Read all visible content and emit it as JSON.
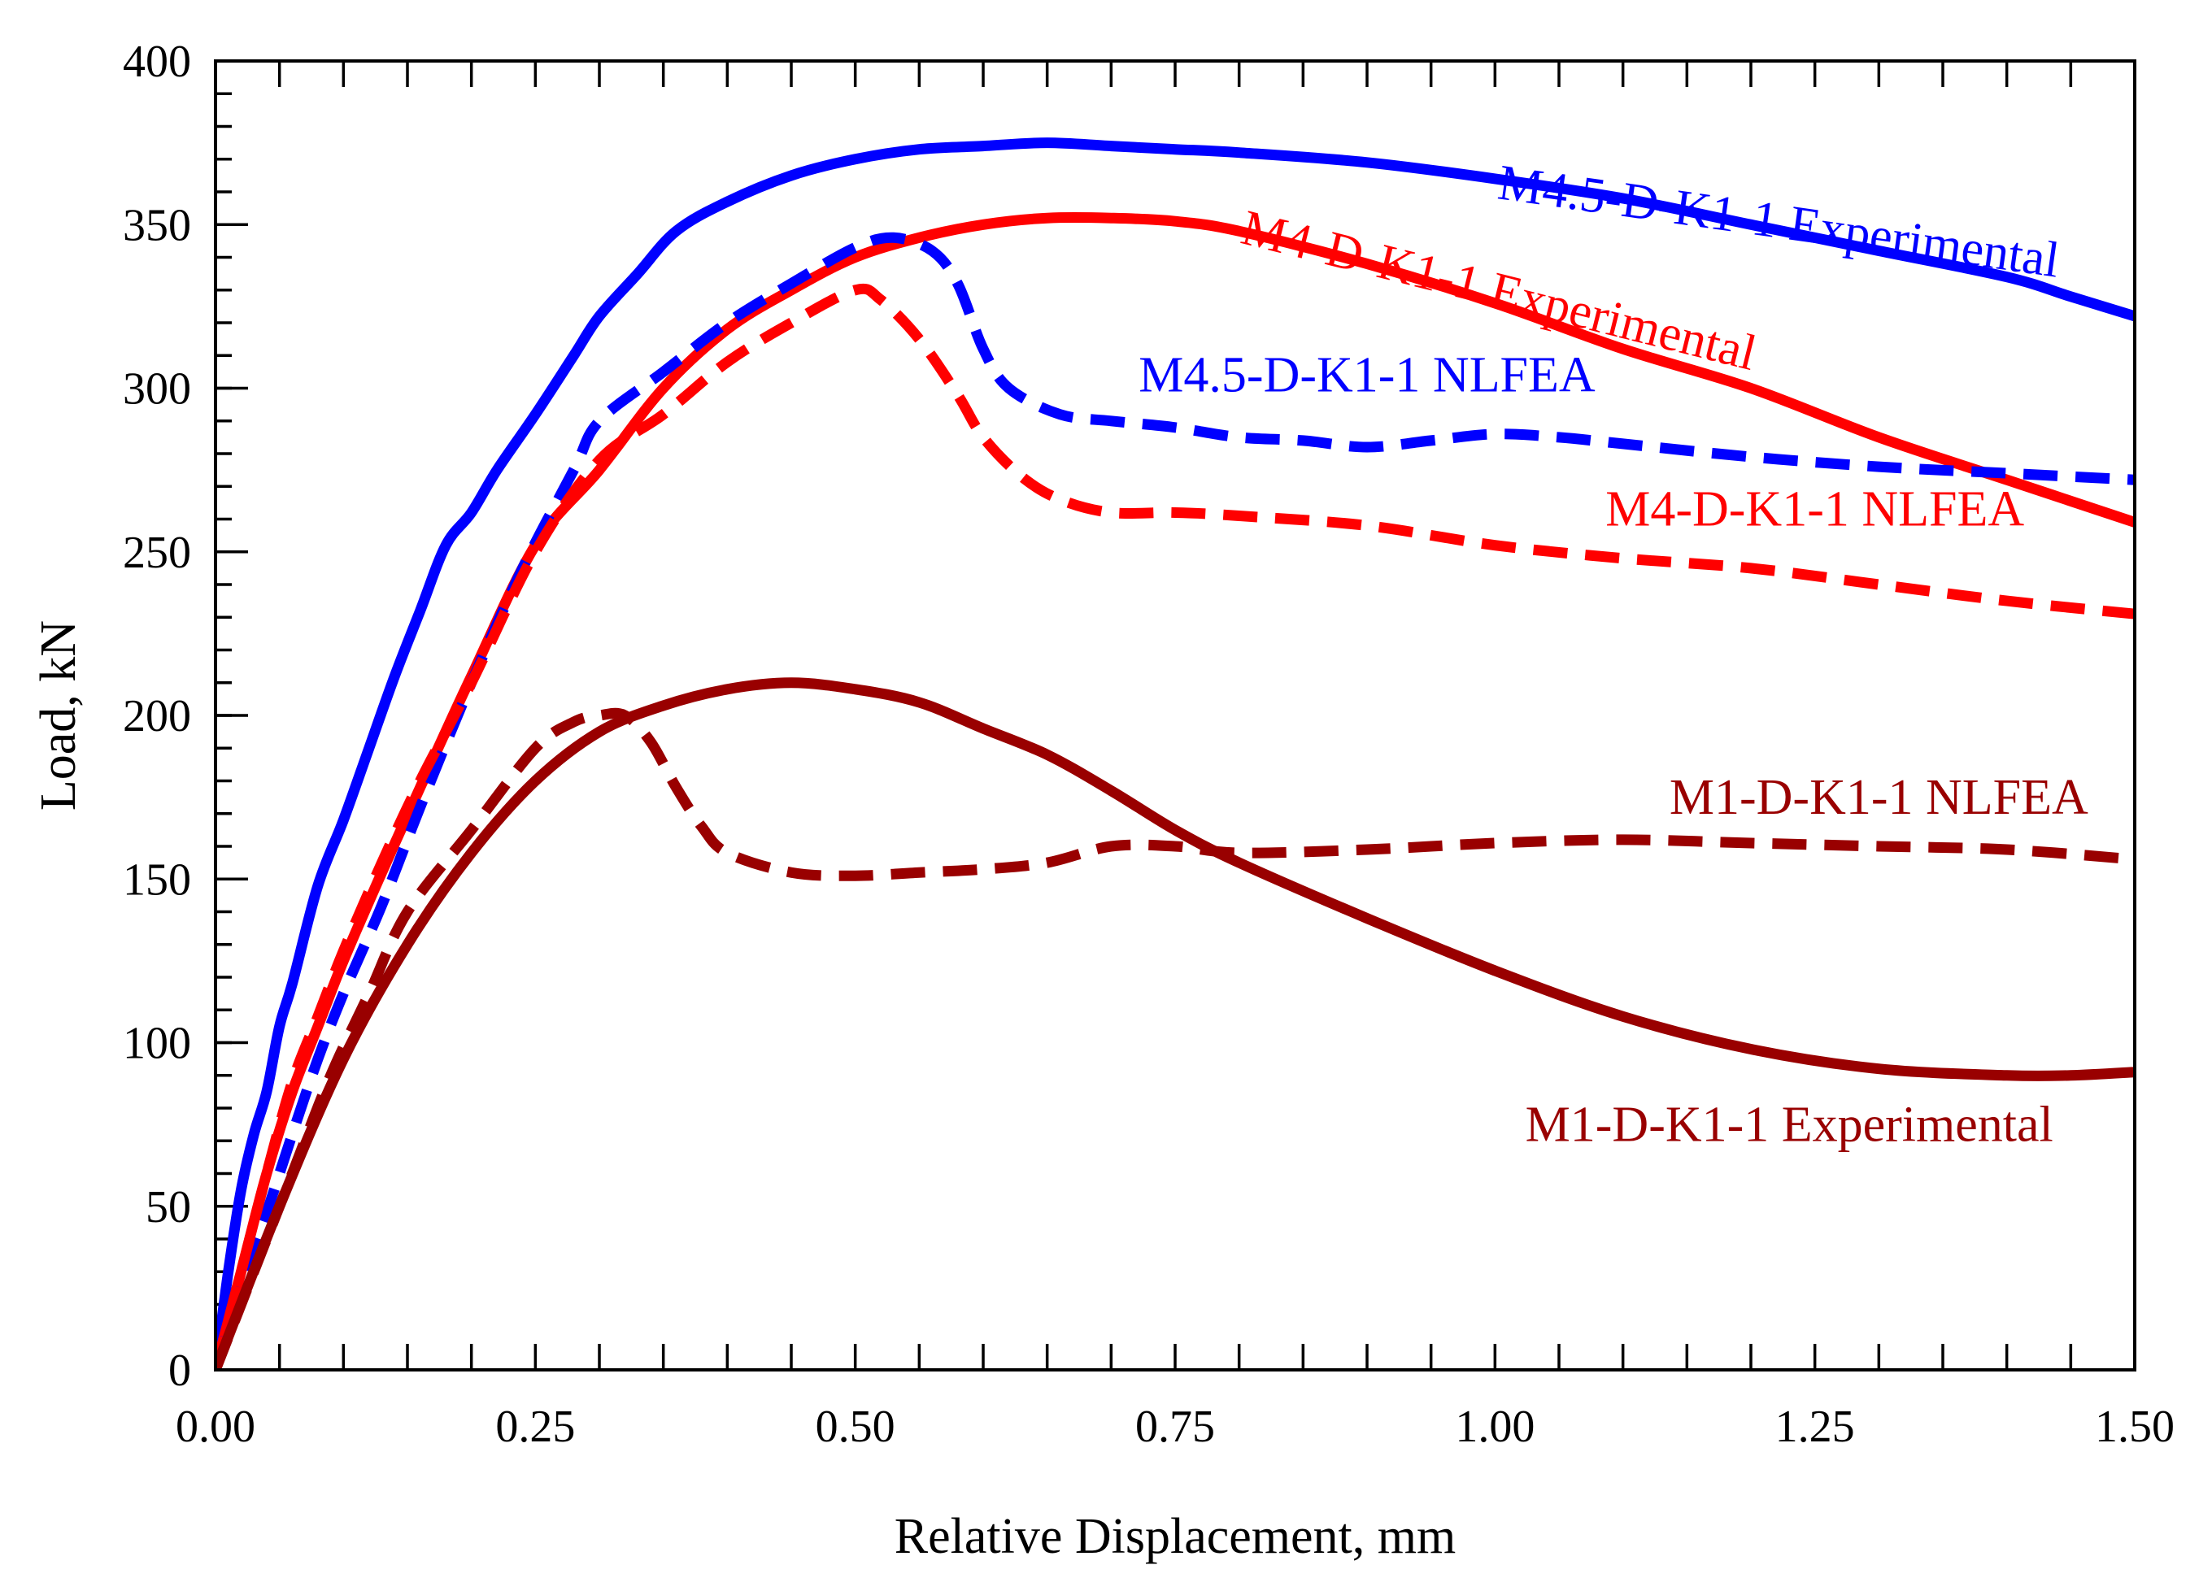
{
  "chart_data": {
    "type": "line",
    "title": "",
    "xlabel": "Relative Displacement, mm",
    "ylabel": "Load, kN",
    "xlim": [
      0,
      1.5
    ],
    "ylim": [
      0,
      400
    ],
    "grid": false,
    "x_major_ticks": [
      0,
      0.25,
      0.5,
      0.75,
      1.0,
      1.25,
      1.5
    ],
    "x_tick_labels": [
      "0.00",
      "0.25",
      "0.50",
      "0.75",
      "1.00",
      "1.25",
      "1.50"
    ],
    "x_minor_step": 0.05,
    "y_major_ticks": [
      0,
      50,
      100,
      150,
      200,
      250,
      300,
      350,
      400
    ],
    "y_tick_labels": [
      "0",
      "50",
      "100",
      "150",
      "200",
      "250",
      "300",
      "350",
      "400"
    ],
    "y_minor_step": 10,
    "series": [
      {
        "name": "M4.5-D-K1-1 Experimental",
        "color": "#0000ff",
        "dash": "solid",
        "x": [
          0,
          0.01,
          0.02,
          0.03,
          0.04,
          0.05,
          0.06,
          0.08,
          0.1,
          0.12,
          0.14,
          0.16,
          0.18,
          0.2,
          0.22,
          0.25,
          0.28,
          0.3,
          0.33,
          0.36,
          0.4,
          0.45,
          0.5,
          0.55,
          0.6,
          0.65,
          0.7,
          0.75,
          0.8,
          0.9,
          1.0,
          1.1,
          1.2,
          1.3,
          1.4,
          1.45,
          1.5
        ],
        "y": [
          0,
          30,
          55,
          72,
          85,
          105,
          118,
          148,
          168,
          190,
          212,
          232,
          252,
          262,
          275,
          292,
          310,
          322,
          335,
          348,
          357,
          365,
          370,
          373,
          374,
          375,
          374,
          373,
          372,
          369,
          364,
          358,
          350,
          342,
          334,
          328,
          322
        ],
        "label_text": "M4.5-D-K1-1 Experimental",
        "label_color": "#0000ff",
        "label_rotation": 8,
        "label_anchor": [
          1.22,
          346
        ]
      },
      {
        "name": "M4-D-K1-1 Experimental",
        "color": "#ff0000",
        "dash": "solid",
        "x": [
          0,
          0.02,
          0.04,
          0.06,
          0.08,
          0.1,
          0.13,
          0.16,
          0.2,
          0.25,
          0.3,
          0.35,
          0.4,
          0.45,
          0.5,
          0.55,
          0.6,
          0.65,
          0.7,
          0.75,
          0.8,
          0.9,
          1.0,
          1.1,
          1.2,
          1.3,
          1.4,
          1.5
        ],
        "y": [
          0,
          30,
          60,
          85,
          105,
          125,
          152,
          178,
          212,
          252,
          275,
          300,
          318,
          330,
          340,
          346,
          350,
          352,
          352,
          351,
          348,
          338,
          326,
          312,
          300,
          285,
          272,
          259
        ],
        "label_text": "M4-D-K1-1 Experimental",
        "label_color": "#ff0000",
        "label_rotation": 14,
        "label_anchor": [
          1.0,
          325
        ]
      },
      {
        "name": "M4.5-D-K1-1 NLFEA",
        "color": "#0000ff",
        "dash": "dashed",
        "x": [
          0,
          0.02,
          0.04,
          0.06,
          0.08,
          0.1,
          0.13,
          0.16,
          0.2,
          0.24,
          0.28,
          0.3,
          0.35,
          0.4,
          0.45,
          0.5,
          0.53,
          0.56,
          0.58,
          0.6,
          0.62,
          0.66,
          0.7,
          0.75,
          0.8,
          0.85,
          0.9,
          0.95,
          1.0,
          1.05,
          1.1,
          1.2,
          1.3,
          1.4,
          1.5
        ],
        "y": [
          0,
          25,
          48,
          72,
          95,
          115,
          142,
          172,
          210,
          245,
          275,
          290,
          305,
          320,
          332,
          343,
          346,
          342,
          332,
          312,
          300,
          292,
          290,
          288,
          285,
          284,
          282,
          284,
          286,
          285,
          283,
          279,
          276,
          274,
          272
        ],
        "label_text": "M4.5-D-K1-1 NLFEA",
        "label_color": "#0000ff",
        "label_rotation": 0,
        "label_anchor": [
          0.9,
          299
        ]
      },
      {
        "name": "M4-D-K1-1 NLFEA",
        "color": "#ff0000",
        "dash": "dashed",
        "x": [
          0,
          0.02,
          0.04,
          0.06,
          0.08,
          0.1,
          0.13,
          0.16,
          0.2,
          0.25,
          0.3,
          0.35,
          0.4,
          0.45,
          0.5,
          0.52,
          0.55,
          0.58,
          0.6,
          0.63,
          0.66,
          0.7,
          0.75,
          0.8,
          0.9,
          1.0,
          1.1,
          1.2,
          1.3,
          1.4,
          1.5
        ],
        "y": [
          0,
          30,
          60,
          88,
          108,
          128,
          155,
          180,
          210,
          250,
          278,
          292,
          308,
          320,
          330,
          327,
          315,
          298,
          285,
          273,
          266,
          262,
          262,
          261,
          258,
          252,
          248,
          245,
          240,
          235,
          231
        ],
        "label_text": "M4-D-K1-1 NLFEA",
        "label_color": "#ff0000",
        "label_rotation": 0,
        "label_anchor": [
          1.25,
          258
        ]
      },
      {
        "name": "M1-D-K1-1 NLFEA",
        "color": "#990000",
        "dash": "dashed",
        "x": [
          0,
          0.03,
          0.06,
          0.09,
          0.12,
          0.15,
          0.2,
          0.25,
          0.28,
          0.3,
          0.32,
          0.34,
          0.36,
          0.38,
          0.4,
          0.45,
          0.5,
          0.55,
          0.6,
          0.65,
          0.7,
          0.75,
          0.8,
          0.9,
          1.0,
          1.1,
          1.2,
          1.3,
          1.4,
          1.5
        ],
        "y": [
          0,
          30,
          60,
          90,
          115,
          140,
          165,
          190,
          198,
          200,
          200,
          192,
          178,
          166,
          158,
          152,
          151,
          152,
          153,
          155,
          160,
          160,
          158,
          159,
          161,
          162,
          161,
          160,
          159,
          156
        ],
        "label_text": "M1-D-K1-1 NLFEA",
        "label_color": "#990000",
        "label_rotation": 0,
        "label_anchor": [
          1.3,
          170
        ]
      },
      {
        "name": "M1-D-K1-1 Experimental",
        "color": "#990000",
        "dash": "solid",
        "x": [
          0,
          0.05,
          0.1,
          0.15,
          0.2,
          0.25,
          0.3,
          0.35,
          0.4,
          0.45,
          0.5,
          0.55,
          0.6,
          0.65,
          0.7,
          0.75,
          0.8,
          0.9,
          1.0,
          1.1,
          1.2,
          1.3,
          1.4,
          1.45,
          1.5
        ],
        "y": [
          0,
          50,
          95,
          130,
          158,
          180,
          195,
          203,
          208,
          210,
          208,
          204,
          196,
          188,
          177,
          165,
          155,
          138,
          122,
          108,
          98,
          92,
          90,
          90,
          91
        ],
        "label_text": "M1-D-K1-1 Experimental",
        "label_color": "#990000",
        "label_rotation": 0,
        "label_anchor": [
          1.23,
          70
        ]
      }
    ]
  }
}
